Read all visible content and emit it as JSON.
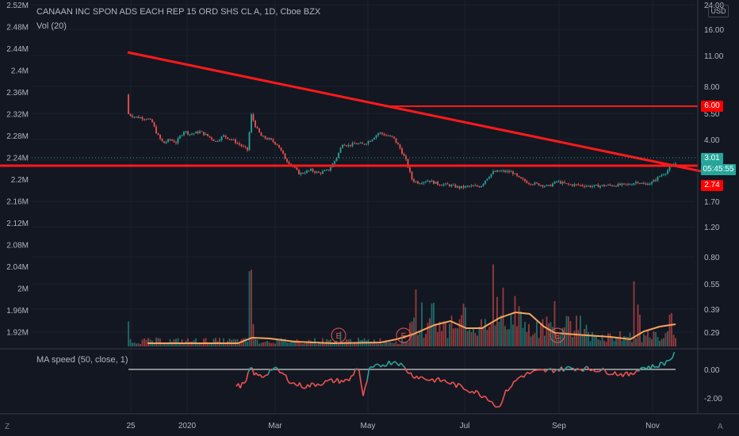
{
  "header": {
    "symbol": "CANAAN INC SPON ADS EACH REP 15 ORD SHS CL A, 1D, Cboe BZX",
    "volume_indicator": "Vol (20)",
    "ma_indicator": "MA speed (50, close, 1)"
  },
  "currency_button": "USD",
  "corner_left": "Z",
  "corner_right": "A",
  "badges": {
    "resistance": "6.00",
    "last_price": "3.01",
    "countdown": "05:45:55",
    "support": "2.74"
  },
  "earnings_markers": [
    "E",
    "E",
    "E"
  ],
  "colors": {
    "background": "#131722",
    "up": "#26a69a",
    "down": "#ef5350",
    "trendline": "#ff1a1a",
    "volume_ma": "#f7a35c",
    "ma_zero": "#ffffff"
  },
  "chart_data": [
    {
      "type": "candlestick",
      "name": "Price",
      "scale": "log",
      "right_axis_ticks": [
        "24.00",
        "16.00",
        "11.00",
        "8.00",
        "5.50",
        "4.00",
        "2.80",
        "1.70",
        "1.20",
        "0.80",
        "0.55",
        "0.39",
        "0.29"
      ],
      "left_axis_ticks": [
        "2.52M",
        "2.48M",
        "2.44M",
        "2.4M",
        "2.36M",
        "2.32M",
        "2.28M",
        "2.24M",
        "2.2M",
        "2.16M",
        "2.12M",
        "2.08M",
        "2.04M",
        "2M",
        "1.96M",
        "1.92M"
      ],
      "x_ticks": [
        "25",
        "2020",
        "Mar",
        "May",
        "Jul",
        "Sep",
        "Nov"
      ],
      "approx_close_path": [
        {
          "month": "Dec 2019",
          "close": 10.5
        },
        {
          "month": "Jan 2020",
          "close": 5.0
        },
        {
          "month": "Feb 2020",
          "close": 5.5
        },
        {
          "month": "Mar 2020",
          "close": 2.8
        },
        {
          "month": "Apr 2020",
          "close": 4.5
        },
        {
          "month": "May 2020",
          "close": 5.5
        },
        {
          "month": "Jun 2020",
          "close": 2.0
        },
        {
          "month": "Jul 2020",
          "close": 1.9
        },
        {
          "month": "Aug 2020",
          "close": 2.6
        },
        {
          "month": "Sep 2020",
          "close": 2.0
        },
        {
          "month": "Oct 2020",
          "close": 1.95
        },
        {
          "month": "Nov 2020",
          "close": 3.01
        }
      ],
      "last_price": 3.01,
      "horizontal_lines": [
        6.0,
        2.74
      ],
      "trendline": {
        "from": {
          "date": "Dec 2019",
          "price": 13.0
        },
        "to": {
          "date": "Nov 2020",
          "price": 2.7
        }
      }
    },
    {
      "type": "bar",
      "name": "Vol (20)",
      "with_moving_average": true
    },
    {
      "type": "line",
      "name": "MA speed (50, close, 1)",
      "y_ticks": [
        "0.00",
        "-2.00"
      ]
    }
  ]
}
